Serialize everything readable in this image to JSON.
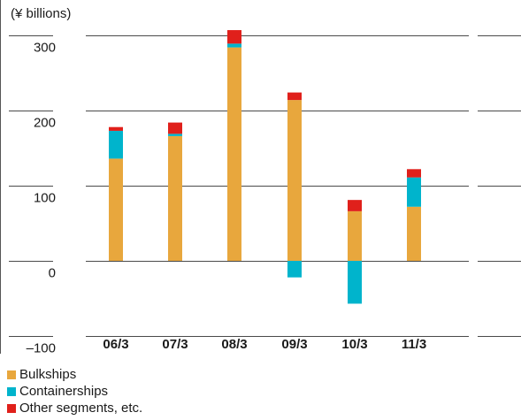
{
  "chart_data": {
    "type": "bar",
    "stacked": true,
    "unit_label": "(¥ billions)",
    "categories": [
      "06/3",
      "07/3",
      "08/3",
      "09/3",
      "10/3",
      "11/3"
    ],
    "yticks": [
      "300",
      "200",
      "100",
      "0",
      "–100"
    ],
    "ylim": [
      -100,
      300
    ],
    "grid": true,
    "legend_position": "bottom-left",
    "series": [
      {
        "name": "Bulkships",
        "color": "#E8A73D",
        "values": [
          136,
          166,
          284,
          214,
          66,
          72
        ]
      },
      {
        "name": "Containerships",
        "color": "#00B4CC",
        "values": [
          37,
          3,
          5,
          -22,
          -57,
          39
        ]
      },
      {
        "name": "Other segments, etc.",
        "color": "#E0201B",
        "values": [
          5,
          15,
          18,
          10,
          15,
          11
        ]
      }
    ]
  }
}
